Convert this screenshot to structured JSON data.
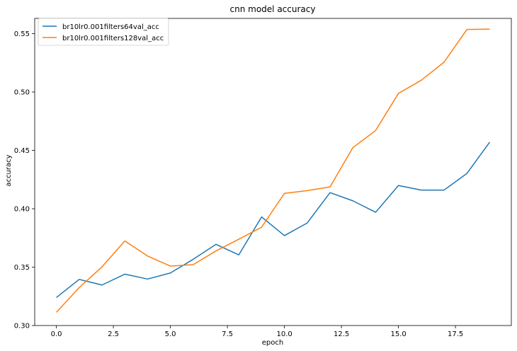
{
  "chart_data": {
    "type": "line",
    "title": "cnn model accuracy",
    "xlabel": "epoch",
    "ylabel": "accuracy",
    "xlim": [
      -0.95,
      19.95
    ],
    "ylim": [
      0.3,
      0.563
    ],
    "xticks": [
      0,
      2.5,
      5,
      7.5,
      10,
      12.5,
      15,
      17.5
    ],
    "xtick_labels": [
      "0.0",
      "2.5",
      "5.0",
      "7.5",
      "10.0",
      "12.5",
      "15.0",
      "17.5"
    ],
    "yticks": [
      0.3,
      0.35,
      0.4,
      0.45,
      0.5,
      0.55
    ],
    "ytick_labels": [
      "0.30",
      "0.35",
      "0.40",
      "0.45",
      "0.50",
      "0.55"
    ],
    "grid": false,
    "legend_position": "top-left",
    "x": [
      0,
      1,
      2,
      3,
      4,
      5,
      6,
      7,
      8,
      9,
      10,
      11,
      12,
      13,
      14,
      15,
      16,
      17,
      18,
      19
    ],
    "series": [
      {
        "name": "br10lr0.001filters64val_acc",
        "color": "#1f77b4",
        "values": [
          0.324,
          0.3395,
          0.3347,
          0.344,
          0.3398,
          0.345,
          0.3567,
          0.3695,
          0.3605,
          0.393,
          0.377,
          0.3878,
          0.4138,
          0.4068,
          0.397,
          0.4199,
          0.416,
          0.416,
          0.4302,
          0.457
        ]
      },
      {
        "name": "br10lr0.001filters128val_acc",
        "color": "#ff7f0e",
        "values": [
          0.3113,
          0.3325,
          0.3502,
          0.3724,
          0.3595,
          0.3509,
          0.3521,
          0.3639,
          0.3739,
          0.3842,
          0.4132,
          0.4155,
          0.4187,
          0.4523,
          0.467,
          0.4988,
          0.51,
          0.5255,
          0.5535,
          0.5538
        ]
      }
    ]
  }
}
